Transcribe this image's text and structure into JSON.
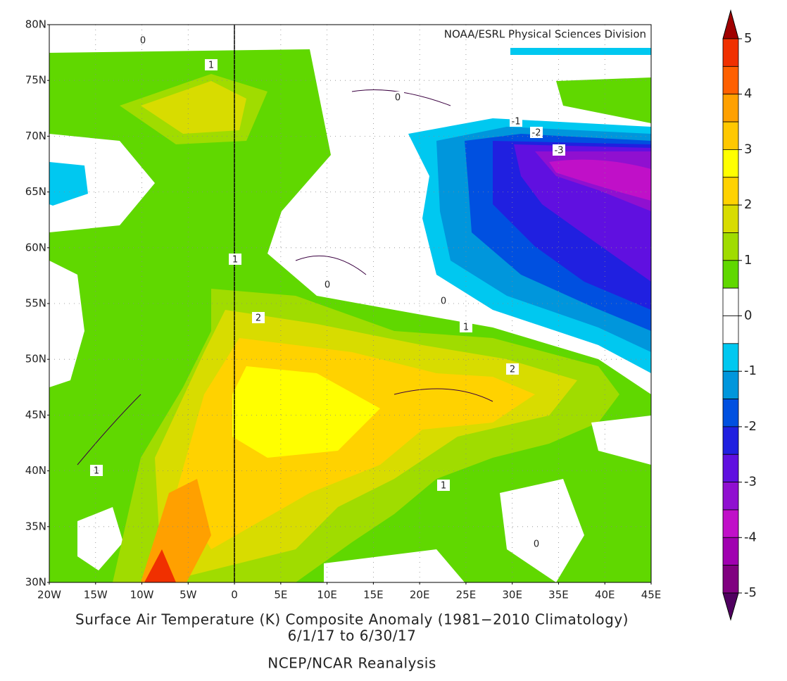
{
  "title": "Surface Air Temperature (K) Composite Anomaly (1981−2010 Climatology)",
  "date_range": "6/1/17  to 6/30/17",
  "source": "NCEP/NCAR Reanalysis",
  "credit": "NOAA/ESRL Physical Sciences Division",
  "lat_labels": [
    "80N",
    "75N",
    "70N",
    "65N",
    "60N",
    "55N",
    "50N",
    "45N",
    "40N",
    "35N",
    "30N"
  ],
  "lon_labels": [
    "20W",
    "15W",
    "10W",
    "5W",
    "0",
    "5E",
    "10E",
    "15E",
    "20E",
    "25E",
    "30E",
    "35E",
    "40E",
    "45E"
  ],
  "contour_labels": [
    0,
    1,
    0,
    -1,
    -2,
    -3,
    1,
    0,
    0,
    2,
    1,
    2,
    1,
    1,
    0
  ],
  "colorbar": {
    "ticks": [
      5,
      4,
      3,
      2,
      1,
      0,
      -1,
      -2,
      -3,
      -4,
      -5
    ],
    "colors": [
      "#a00000",
      "#f03000",
      "#ff6000",
      "#ffa000",
      "#ffc800",
      "#ffff00",
      "#ffd200",
      "#d8dc00",
      "#a0dc00",
      "#60d800",
      "#ffffff",
      "#ffffff",
      "#00c8f0",
      "#0096dc",
      "#0050e0",
      "#2020e0",
      "#6010e0",
      "#9010d0",
      "#c010c8",
      "#a000b0",
      "#800080",
      "#500060"
    ]
  }
}
